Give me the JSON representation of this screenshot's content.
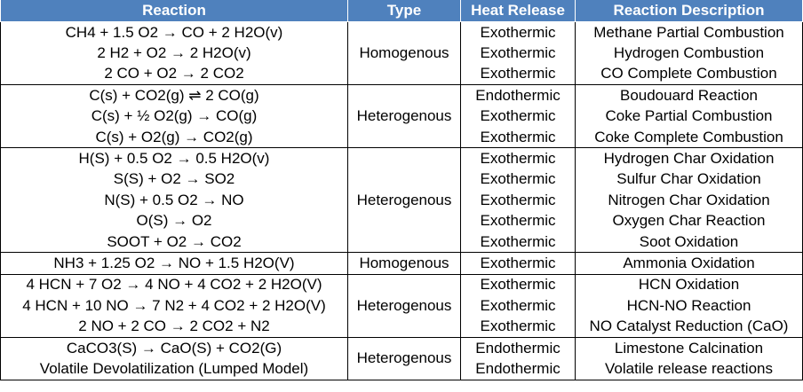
{
  "table": {
    "header": [
      "Reaction",
      "Type",
      "Heat Release",
      "Reaction Description"
    ],
    "groups": [
      {
        "type": "Homogenous",
        "rows": [
          [
            "CH4 + 1.5 O2 → CO + 2 H2O(v)",
            "Exothermic",
            "Methane Partial Combustion"
          ],
          [
            "2 H2 + O2 → 2 H2O(v)",
            "Exothermic",
            "Hydrogen Combustion"
          ],
          [
            "2 CO + O2 → 2 CO2",
            "Exothermic",
            "CO Complete Combustion"
          ]
        ]
      },
      {
        "type": "Heterogenous",
        "rows": [
          [
            "C(s) + CO2(g) ⇌ 2 CO(g)",
            "Endothermic",
            "Boudouard Reaction"
          ],
          [
            "C(s) + ½ O2(g) → CO(g)",
            "Exothermic",
            "Coke Partial Combustion"
          ],
          [
            "C(s) + O2(g) → CO2(g)",
            "Exothermic",
            "Coke Complete Combustion"
          ]
        ]
      },
      {
        "type": "Heterogenous",
        "rows": [
          [
            "H(S) + 0.5 O2 → 0.5 H2O(v)",
            "Exothermic",
            "Hydrogen Char Oxidation"
          ],
          [
            "S(S) + O2 → SO2",
            "Exothermic",
            "Sulfur Char Oxidation"
          ],
          [
            "N(S) + 0.5 O2 → NO",
            "Exothermic",
            "Nitrogen Char Oxidation"
          ],
          [
            "O(S) → O2",
            "Exothermic",
            "Oxygen Char Reaction"
          ],
          [
            "SOOT + O2 → CO2",
            "Exothermic",
            "Soot Oxidation"
          ]
        ]
      },
      {
        "type": "Homogenous",
        "rows": [
          [
            "NH3 + 1.25 O2 → NO + 1.5 H2O(V)",
            "Exothermic",
            "Ammonia Oxidation"
          ]
        ]
      },
      {
        "type": "Heterogenous",
        "rows": [
          [
            "4 HCN + 7 O2 → 4 NO + 4 CO2 + 2 H2O(V)",
            "Exothermic",
            "HCN Oxidation"
          ],
          [
            "4 HCN + 10 NO → 7 N2 + 4 CO2 + 2 H2O(V)",
            "Exothermic",
            "HCN-NO Reaction"
          ],
          [
            "2 NO + 2 CO → 2 CO2 + N2",
            "Exothermic",
            "NO Catalyst Reduction (CaO)"
          ]
        ]
      },
      {
        "type": "Heterogenous",
        "rows": [
          [
            "CaCO3(S) → CaO(S) + CO2(G)",
            "Endothermic",
            "Limestone Calcination"
          ],
          [
            "Volatile Devolatilization (Lumped Model)",
            "Endothermic",
            "Volatile release reactions"
          ]
        ]
      }
    ]
  }
}
